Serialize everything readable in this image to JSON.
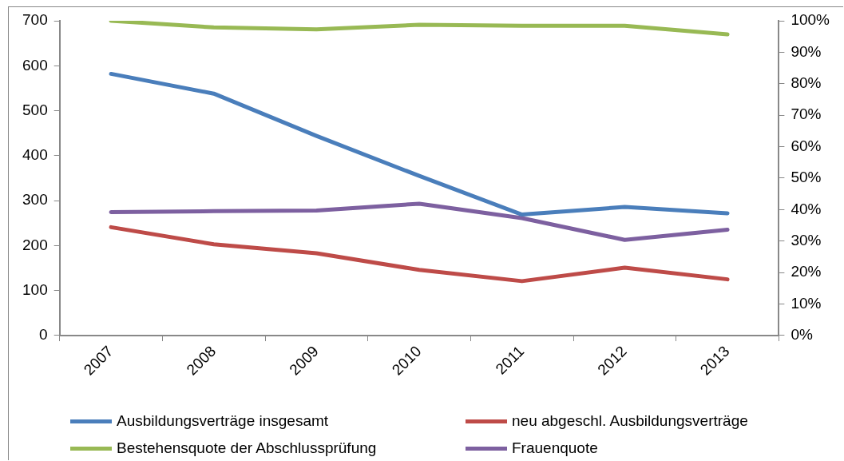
{
  "chart_data": {
    "type": "line",
    "categories": [
      "2007",
      "2008",
      "2009",
      "2010",
      "2011",
      "2012",
      "2013"
    ],
    "series": [
      {
        "name": "Ausbildungsverträge insgesamt",
        "color": "#4a7ebb",
        "values": [
          582,
          538,
          444,
          355,
          269,
          286,
          272
        ]
      },
      {
        "name": "neu abgeschl. Ausbildungsverträge",
        "color": "#be4b48",
        "values": [
          241,
          203,
          183,
          146,
          121,
          151,
          125
        ]
      },
      {
        "name": "Bestehensquote der Abschlussprüfung",
        "color": "#98b954",
        "axis": "y2",
        "values": [
          100,
          97.9,
          97.3,
          98.7,
          98.4,
          98.4,
          95.7
        ]
      },
      {
        "name": "Frauenquote",
        "color": "#7d60a0",
        "axis": "y2",
        "values": [
          39.2,
          39.5,
          39.7,
          41.9,
          37.3,
          30.4,
          33.6
        ]
      }
    ],
    "ylim": [
      0,
      700
    ],
    "yticks": [
      0,
      100,
      200,
      300,
      400,
      500,
      600,
      700
    ],
    "y2lim": [
      0,
      100
    ],
    "y2ticks": [
      {
        "value": 0,
        "label": "0%"
      },
      {
        "value": 10,
        "label": "10%"
      },
      {
        "value": 20,
        "label": "20%"
      },
      {
        "value": 30,
        "label": "30%"
      },
      {
        "value": 40,
        "label": "40%"
      },
      {
        "value": 50,
        "label": "50%"
      },
      {
        "value": 60,
        "label": "60%"
      },
      {
        "value": 70,
        "label": "70%"
      },
      {
        "value": 80,
        "label": "80%"
      },
      {
        "value": 90,
        "label": "90%"
      },
      {
        "value": 100,
        "label": "100%"
      }
    ],
    "grid": false,
    "legend": "bottom",
    "marker": "none",
    "line_style": "solid"
  }
}
